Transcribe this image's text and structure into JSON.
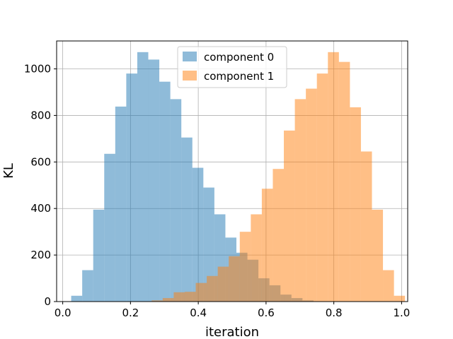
{
  "chart_data": {
    "type": "histogram",
    "xlabel": "iteration",
    "ylabel": "KL",
    "xlim": [
      -0.018,
      1.018
    ],
    "ylim": [
      0,
      1120
    ],
    "xticks": [
      0.0,
      0.2,
      0.4,
      0.6,
      0.8,
      1.0
    ],
    "xtick_labels": [
      "0.0",
      "0.2",
      "0.4",
      "0.6",
      "0.8",
      "1.0"
    ],
    "yticks": [
      0,
      200,
      400,
      600,
      800,
      1000
    ],
    "ytick_labels": [
      "0",
      "200",
      "400",
      "600",
      "800",
      "1000"
    ],
    "grid": true,
    "legend_position": "top-center",
    "bar_alpha": 0.5,
    "series": [
      {
        "name": "component 0",
        "color": "#1f77b4",
        "bin_start": 0.025,
        "bin_width": 0.0325,
        "values": [
          25,
          135,
          395,
          635,
          838,
          980,
          1072,
          1040,
          945,
          870,
          705,
          575,
          490,
          375,
          275,
          210,
          180,
          100,
          70,
          30,
          15,
          5,
          0,
          0,
          0,
          0,
          0,
          0,
          0,
          0
        ]
      },
      {
        "name": "component 1",
        "color": "#ff7f0e",
        "bin_start": 0.035,
        "bin_width": 0.0325,
        "values": [
          0,
          0,
          0,
          0,
          0,
          0,
          0,
          5,
          15,
          40,
          42,
          80,
          110,
          150,
          195,
          300,
          375,
          485,
          570,
          735,
          870,
          915,
          980,
          1072,
          1030,
          835,
          645,
          395,
          135,
          25
        ]
      }
    ]
  }
}
